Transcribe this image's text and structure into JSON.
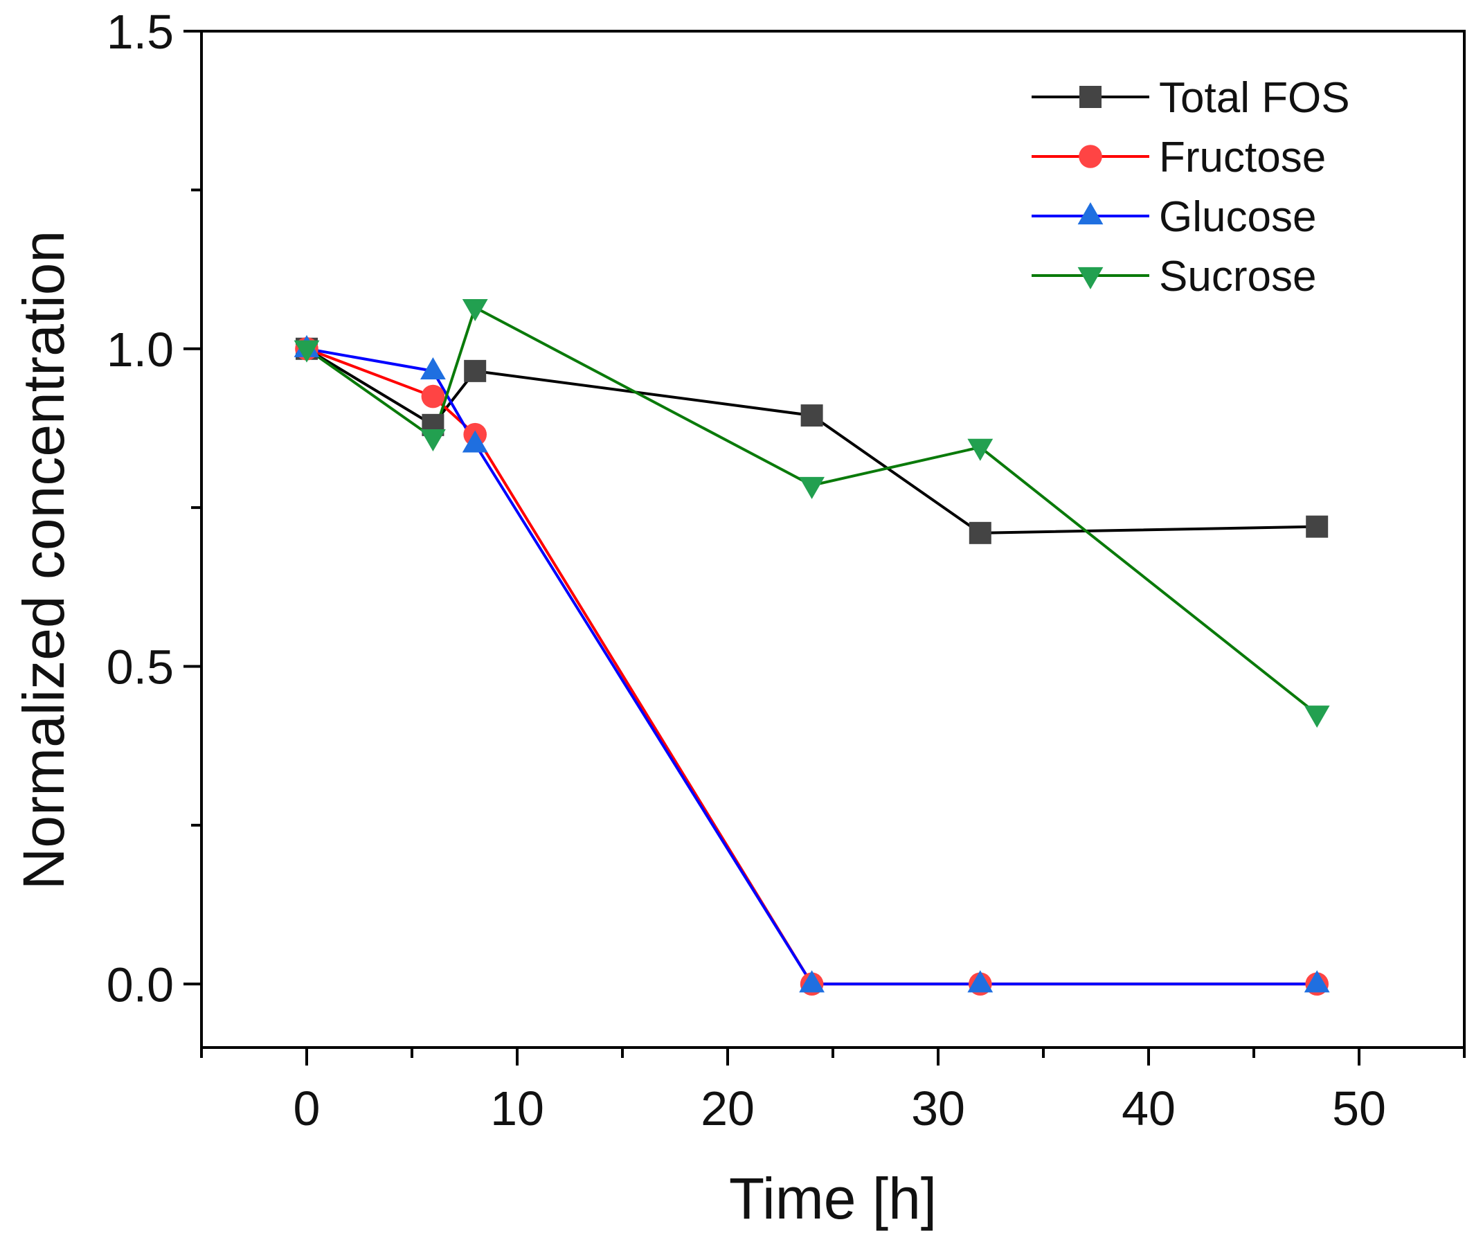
{
  "chart_data": {
    "type": "line",
    "title": "",
    "xlabel": "Time [h]",
    "ylabel": "Normalized concentration",
    "xlim": [
      -5,
      55
    ],
    "ylim": [
      -0.1,
      1.5
    ],
    "xticks": [
      0,
      10,
      20,
      30,
      40,
      50
    ],
    "xtick_labels": [
      "0",
      "10",
      "20",
      "30",
      "40",
      "50"
    ],
    "yticks": [
      0.0,
      0.5,
      1.0,
      1.5
    ],
    "ytick_labels": [
      "0.0",
      "0.5",
      "1.0",
      "1.5"
    ],
    "grid": false,
    "legend_position": "top-right",
    "series": [
      {
        "name": "Total FOS",
        "line_color": "#000000",
        "marker_color": "#444444",
        "marker": "square",
        "x": [
          0,
          6,
          8,
          24,
          32,
          48
        ],
        "values": [
          1.0,
          0.88,
          0.965,
          0.895,
          0.71,
          0.72
        ]
      },
      {
        "name": "Fructose",
        "line_color": "#ff0000",
        "marker_color": "#ff4444",
        "marker": "circle",
        "x": [
          0,
          6,
          8,
          24,
          32,
          48
        ],
        "values": [
          1.0,
          0.925,
          0.865,
          0.0,
          0.0,
          0.0
        ]
      },
      {
        "name": "Glucose",
        "line_color": "#0000ff",
        "marker_color": "#1f6fe0",
        "marker": "triangle-up",
        "x": [
          0,
          6,
          8,
          24,
          32,
          48
        ],
        "values": [
          1.0,
          0.965,
          0.85,
          0.0,
          0.0,
          0.0
        ]
      },
      {
        "name": "Sucrose",
        "line_color": "#0a7a0a",
        "marker_color": "#22a050",
        "marker": "triangle-down",
        "x": [
          0,
          6,
          8,
          24,
          32,
          48
        ],
        "values": [
          1.0,
          0.86,
          1.065,
          0.785,
          0.845,
          0.425
        ]
      }
    ]
  }
}
